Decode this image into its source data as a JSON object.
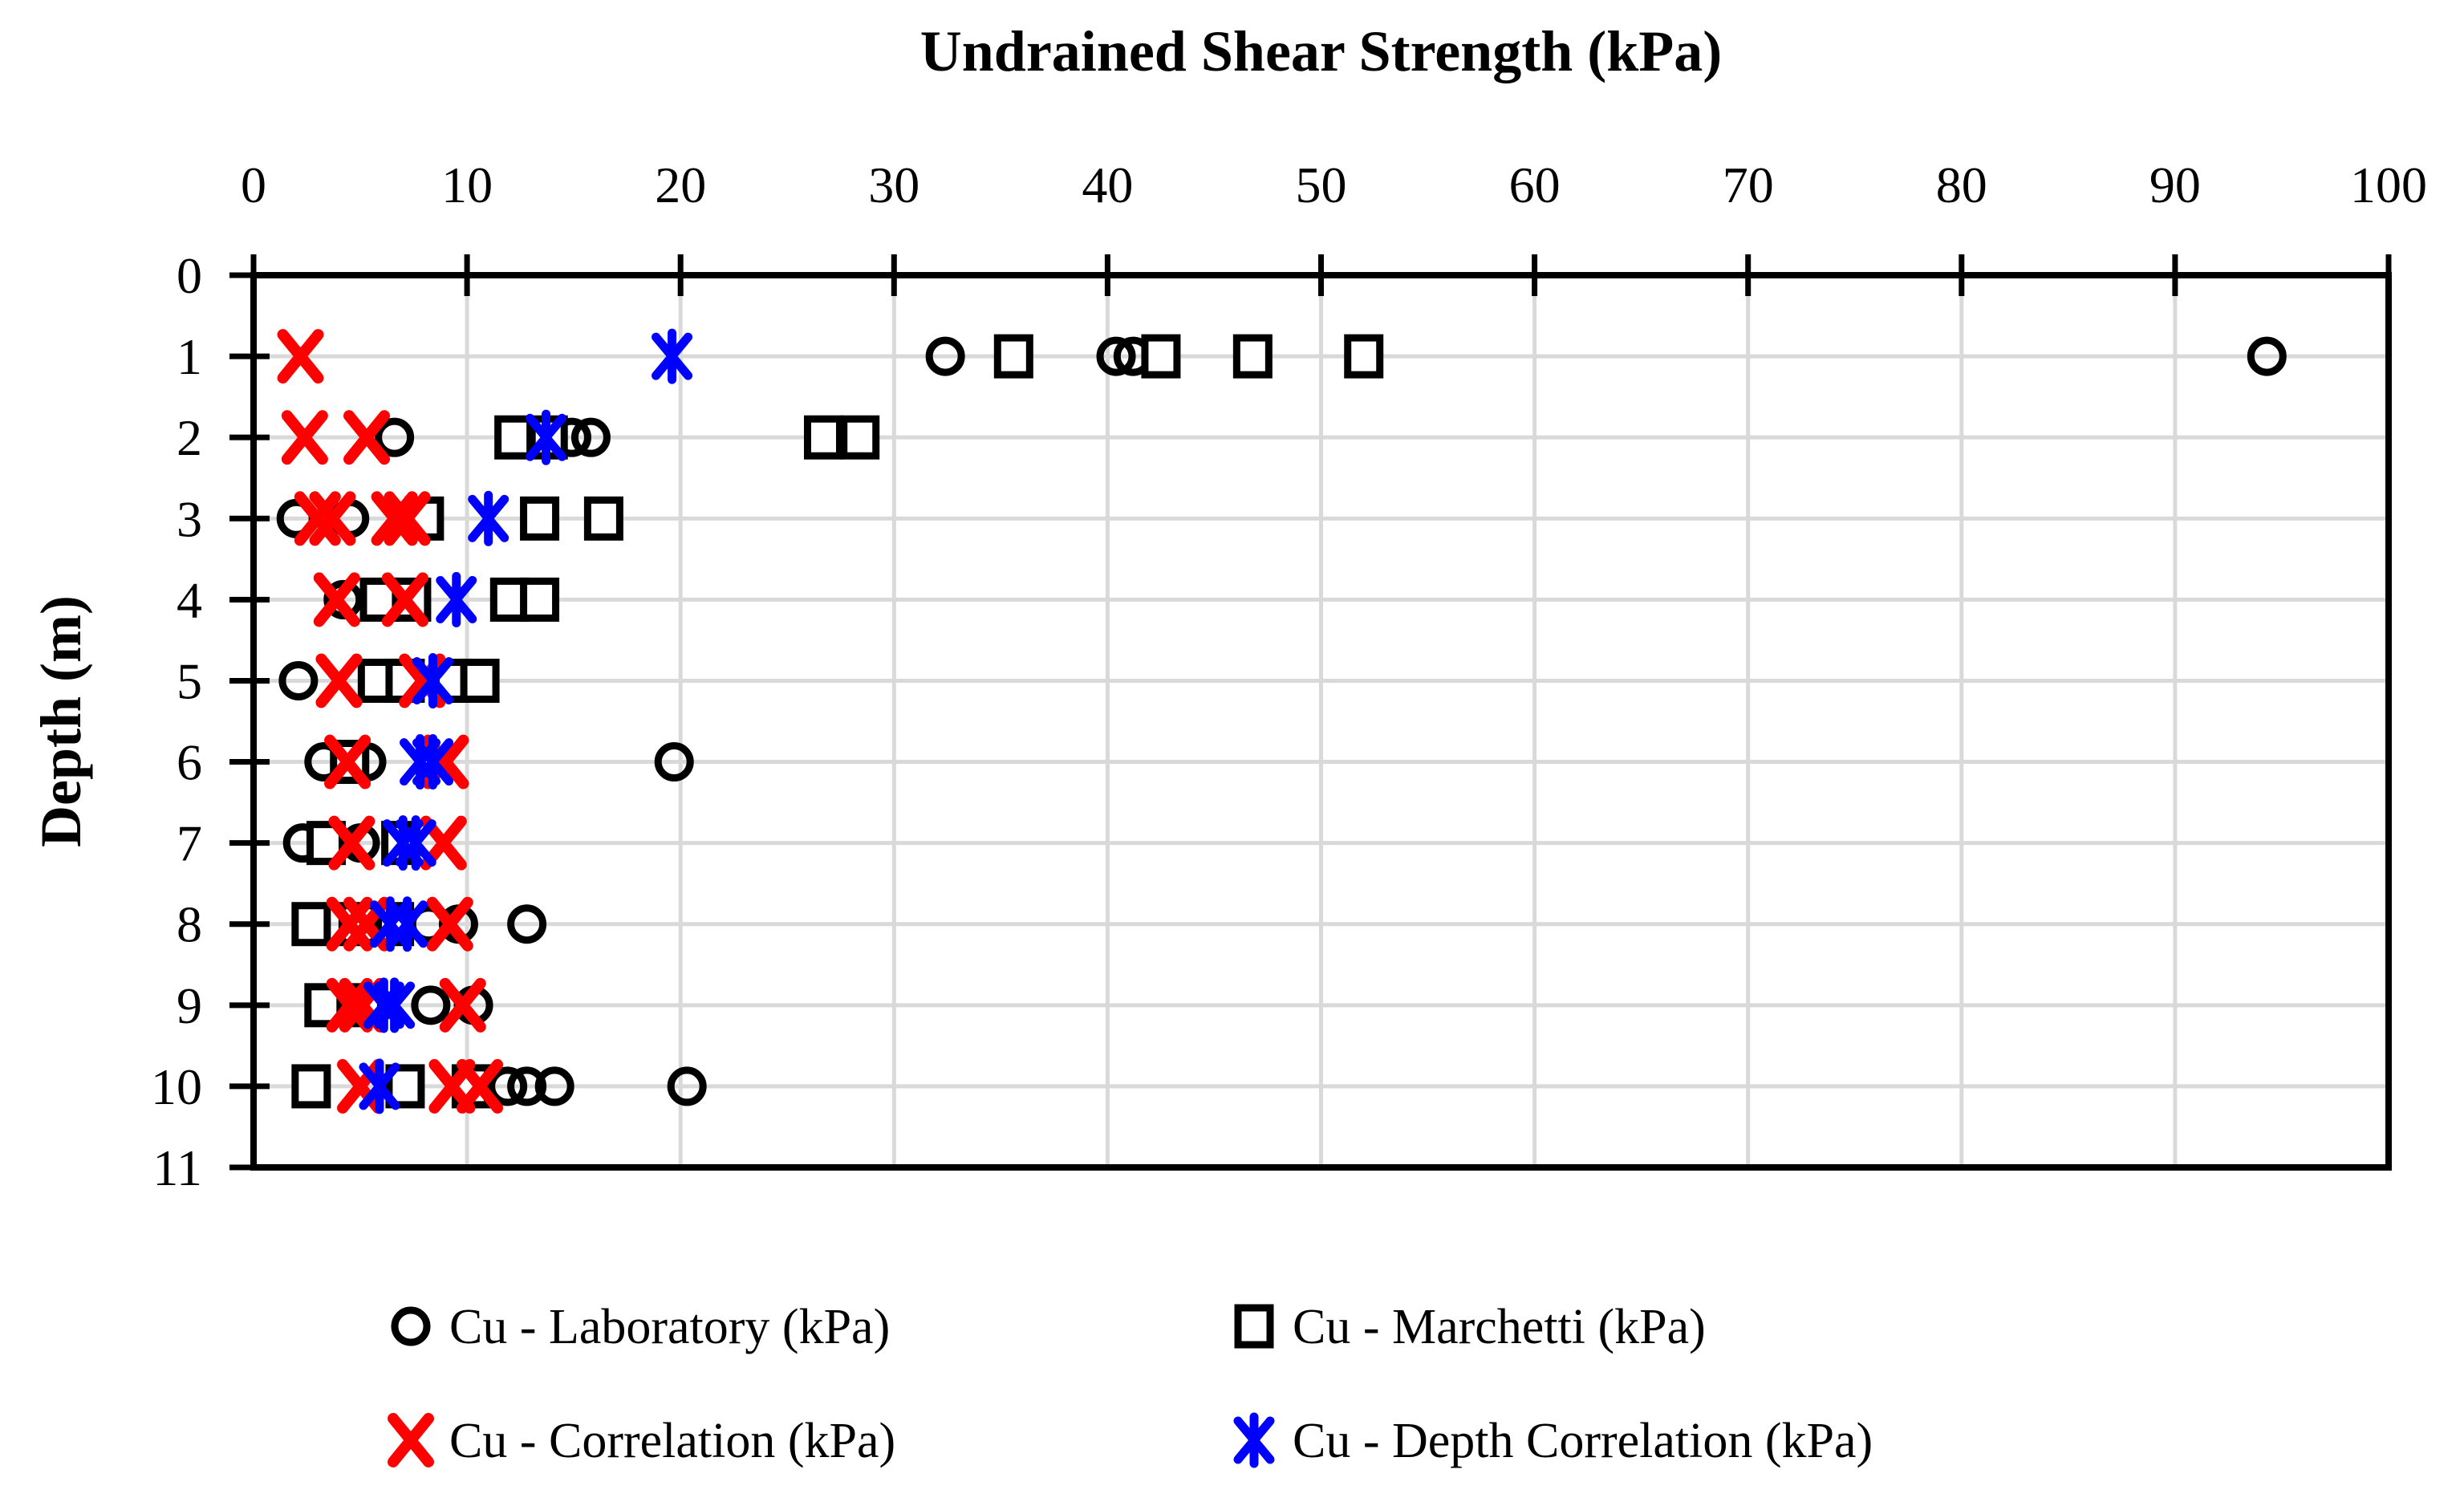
{
  "chart_data": {
    "type": "scatter",
    "title": "Undrained Shear Strength (kPa)",
    "xlabel": "Undrained Shear Strength (kPa)",
    "ylabel": "Depth (m)",
    "x_axis": {
      "position": "top",
      "min": 0,
      "max": 100,
      "tick_step": 10,
      "ticks": [
        0,
        10,
        20,
        30,
        40,
        50,
        60,
        70,
        80,
        90,
        100
      ]
    },
    "y_axis": {
      "min": 0,
      "max": 11,
      "tick_step": 1,
      "inverted": true,
      "ticks": [
        0,
        1,
        2,
        3,
        4,
        5,
        6,
        7,
        8,
        9,
        10,
        11
      ]
    },
    "grid": true,
    "legend_position": "bottom",
    "colors": {
      "axis": "#000000",
      "gridline": "#d9d9d9",
      "lab": "#000000",
      "marchetti": "#000000",
      "correlation": "#ff0000",
      "depth_correlation": "#0000ff",
      "marker_fill": "#ffffff"
    },
    "series": [
      {
        "name": "Cu - Laboratory (kPa)",
        "marker": "circle",
        "color": "#000000",
        "points": [
          [
            32.4,
            1
          ],
          [
            40.4,
            1
          ],
          [
            41.2,
            1
          ],
          [
            94.3,
            1
          ],
          [
            6.6,
            2
          ],
          [
            14.9,
            2
          ],
          [
            15.8,
            2
          ],
          [
            2.0,
            3
          ],
          [
            4.5,
            3
          ],
          [
            4.2,
            4
          ],
          [
            2.1,
            5
          ],
          [
            3.3,
            6
          ],
          [
            5.3,
            6
          ],
          [
            19.7,
            6
          ],
          [
            2.3,
            7
          ],
          [
            5.0,
            7
          ],
          [
            8.2,
            8
          ],
          [
            9.6,
            8
          ],
          [
            12.8,
            8
          ],
          [
            8.3,
            9
          ],
          [
            10.3,
            9
          ],
          [
            11.9,
            10
          ],
          [
            12.8,
            10
          ],
          [
            14.1,
            10
          ],
          [
            20.3,
            10
          ]
        ]
      },
      {
        "name": "Cu - Marchetti (kPa)",
        "marker": "square",
        "color": "#000000",
        "points": [
          [
            35.6,
            1
          ],
          [
            42.5,
            1
          ],
          [
            46.8,
            1
          ],
          [
            52.0,
            1
          ],
          [
            12.2,
            2
          ],
          [
            13.8,
            2
          ],
          [
            26.7,
            2
          ],
          [
            28.4,
            2
          ],
          [
            8.0,
            3
          ],
          [
            13.4,
            3
          ],
          [
            16.4,
            3
          ],
          [
            5.9,
            4
          ],
          [
            7.4,
            4
          ],
          [
            12.0,
            4
          ],
          [
            13.4,
            4
          ],
          [
            5.8,
            5
          ],
          [
            7.1,
            5
          ],
          [
            9.3,
            5
          ],
          [
            10.6,
            5
          ],
          [
            4.5,
            6
          ],
          [
            3.4,
            7
          ],
          [
            6.9,
            7
          ],
          [
            2.7,
            8
          ],
          [
            4.9,
            8
          ],
          [
            6.6,
            8
          ],
          [
            3.3,
            9
          ],
          [
            5.2,
            9
          ],
          [
            2.7,
            10
          ],
          [
            7.1,
            10
          ],
          [
            10.2,
            10
          ]
        ]
      },
      {
        "name": "Cu - Correlation (kPa)",
        "marker": "x",
        "color": "#ff0000",
        "points": [
          [
            2.2,
            1
          ],
          [
            2.4,
            2
          ],
          [
            5.3,
            2
          ],
          [
            3.0,
            3
          ],
          [
            3.7,
            3
          ],
          [
            6.6,
            3
          ],
          [
            7.2,
            3
          ],
          [
            3.9,
            4
          ],
          [
            7.1,
            4
          ],
          [
            4.0,
            5
          ],
          [
            7.9,
            5
          ],
          [
            4.4,
            6
          ],
          [
            9.0,
            6
          ],
          [
            4.6,
            7
          ],
          [
            8.9,
            7
          ],
          [
            4.5,
            8
          ],
          [
            5.3,
            8
          ],
          [
            9.2,
            8
          ],
          [
            4.5,
            9
          ],
          [
            5.1,
            9
          ],
          [
            9.8,
            9
          ],
          [
            5.0,
            10
          ],
          [
            9.3,
            10
          ],
          [
            10.6,
            10
          ]
        ]
      },
      {
        "name": "Cu - Depth Correlation (kPa)",
        "marker": "asterisk",
        "color": "#0000ff",
        "points": [
          [
            19.6,
            1
          ],
          [
            13.7,
            2
          ],
          [
            11.0,
            3
          ],
          [
            9.5,
            4
          ],
          [
            8.4,
            5
          ],
          [
            7.8,
            6
          ],
          [
            8.4,
            6
          ],
          [
            7.0,
            7
          ],
          [
            7.6,
            7
          ],
          [
            6.4,
            8
          ],
          [
            7.2,
            8
          ],
          [
            6.1,
            9
          ],
          [
            6.6,
            9
          ],
          [
            5.9,
            10
          ]
        ]
      }
    ]
  }
}
